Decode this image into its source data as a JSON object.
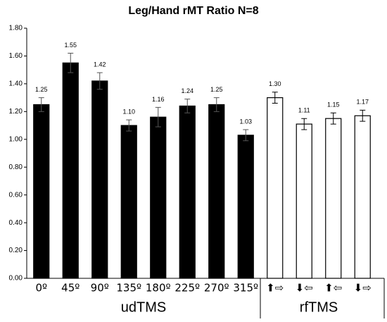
{
  "chart_data": {
    "type": "bar",
    "title": "Leg/Hand rMT Ratio N=8",
    "categories": [
      "0º",
      "45º",
      "90º",
      "135º",
      "180º",
      "225º",
      "270º",
      "315º",
      "⬆⇨",
      "⬇⇦",
      "⬆⇦",
      "⬇⇨"
    ],
    "values": [
      1.25,
      1.55,
      1.42,
      1.1,
      1.16,
      1.24,
      1.25,
      1.03,
      1.3,
      1.11,
      1.15,
      1.17
    ],
    "value_labels": [
      "1.25",
      "1.55",
      "1.42",
      "1.10",
      "1.16",
      "1.24",
      "1.25",
      "1.03",
      "1.30",
      "1.11",
      "1.15",
      "1.17"
    ],
    "errors": [
      0.05,
      0.07,
      0.06,
      0.04,
      0.07,
      0.05,
      0.05,
      0.04,
      0.04,
      0.04,
      0.04,
      0.04
    ],
    "colors": [
      "#000000",
      "#000000",
      "#000000",
      "#000000",
      "#000000",
      "#000000",
      "#000000",
      "#000000",
      "#ffffff",
      "#ffffff",
      "#ffffff",
      "#ffffff"
    ],
    "groups": [
      {
        "label": "udTMS",
        "size": 8
      },
      {
        "label": "rfTMS",
        "size": 4
      }
    ],
    "ylim": [
      0,
      1.8
    ],
    "yticks": [
      {
        "value": 0,
        "label": "0.00"
      },
      {
        "value": 0.2,
        "label": "0.20"
      },
      {
        "value": 0.4,
        "label": "0.40"
      },
      {
        "value": 0.6,
        "label": "0.60"
      },
      {
        "value": 0.8,
        "label": "0.80"
      },
      {
        "value": 1.0,
        "label": "1.00"
      },
      {
        "value": 1.2,
        "label": "1.20"
      },
      {
        "value": 1.4,
        "label": "1.40"
      },
      {
        "value": 1.6,
        "label": "1.60"
      },
      {
        "value": 1.8,
        "label": "1.80"
      }
    ]
  }
}
